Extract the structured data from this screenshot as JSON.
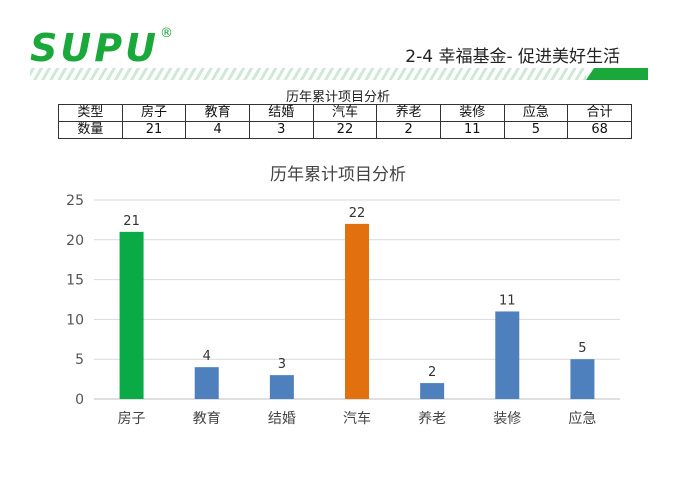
{
  "header": {
    "logo_text": "SUPU",
    "logo_mark": "®",
    "title": "2-4 幸福基金- 促进美好生活",
    "brand_color": "#1aa83a"
  },
  "table": {
    "title": "历年累计项目分析",
    "row_headers": [
      "类型",
      "数量"
    ],
    "categories": [
      "房子",
      "教育",
      "结婚",
      "汽车",
      "养老",
      "装修",
      "应急",
      "合计"
    ],
    "values": [
      "21",
      "4",
      "3",
      "22",
      "2",
      "11",
      "5",
      "68"
    ]
  },
  "chart_data": {
    "type": "bar",
    "title": "历年累计项目分析",
    "categories": [
      "房子",
      "教育",
      "结婚",
      "汽车",
      "养老",
      "装修",
      "应急"
    ],
    "values": [
      21,
      4,
      3,
      22,
      2,
      11,
      5
    ],
    "colors": [
      "#0aab47",
      "#4e80bd",
      "#4e80bd",
      "#e3700f",
      "#4e80bd",
      "#4e80bd",
      "#4e80bd"
    ],
    "ylim": [
      0,
      25
    ],
    "yticks": [
      0,
      5,
      10,
      15,
      20,
      25
    ],
    "grid": true,
    "data_labels": true,
    "xlabel": "",
    "ylabel": ""
  }
}
